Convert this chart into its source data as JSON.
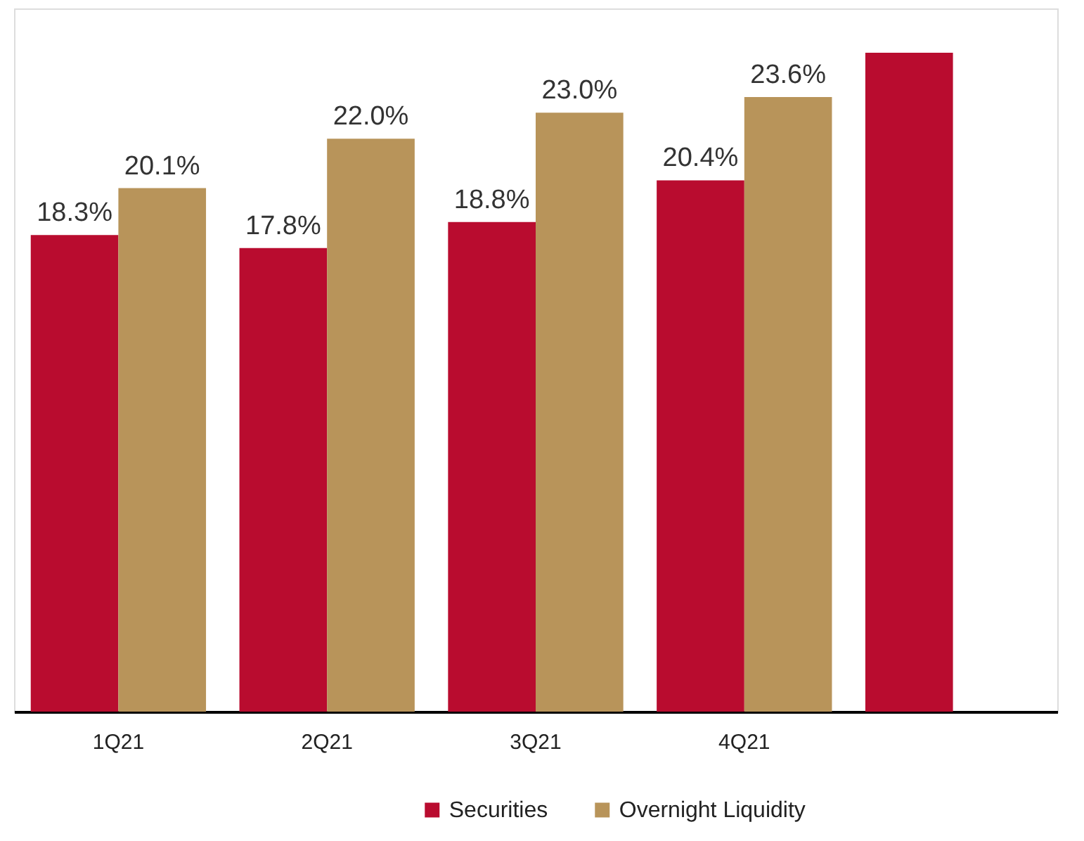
{
  "chart_data": {
    "type": "bar",
    "categories": [
      "1Q21",
      "2Q21",
      "3Q21",
      "4Q21",
      null
    ],
    "series": [
      {
        "name": "Securities",
        "color": "#b90c2f",
        "values": [
          18.3,
          17.8,
          18.8,
          20.4,
          25.3
        ],
        "value_labels": [
          "18.3%",
          "17.8%",
          "18.8%",
          "20.4%",
          null
        ]
      },
      {
        "name": "Overnight Liquidity",
        "color": "#b8945a",
        "values": [
          20.1,
          22.0,
          23.0,
          23.6,
          null
        ],
        "value_labels": [
          "20.1%",
          "22.0%",
          "23.0%",
          "23.6%",
          null
        ]
      }
    ],
    "ylim": [
      0,
      27
    ],
    "tick_labels": "x",
    "legend": "bottom"
  }
}
